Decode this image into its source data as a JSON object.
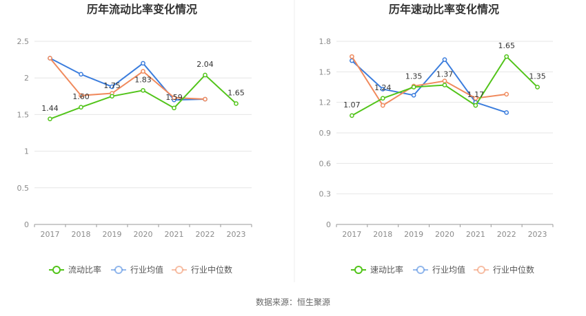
{
  "source": "数据来源：恒生聚源",
  "colors": {
    "company": "#52c41a",
    "avg": "#3b7ddd",
    "median": "#f08a5d"
  },
  "chart_data": [
    {
      "type": "line",
      "title": "历年流动比率变化情况",
      "categories": [
        "2017",
        "2018",
        "2019",
        "2020",
        "2021",
        "2022",
        "2023"
      ],
      "ylim": [
        0,
        2.5
      ],
      "yticks": [
        "0",
        "0.5",
        "1",
        "1.5",
        "2",
        "2.5"
      ],
      "ytick_values": [
        0,
        0.5,
        1,
        1.5,
        2,
        2.5
      ],
      "grid": true,
      "legend_position": "bottom",
      "series": [
        {
          "name": "流动比率",
          "values": [
            1.44,
            1.6,
            1.75,
            1.83,
            1.59,
            2.04,
            1.65
          ],
          "labels": [
            "1.44",
            "1.60",
            "1.75",
            "1.83",
            "1.59",
            "2.04",
            "1.65"
          ]
        },
        {
          "name": "行业均值",
          "values": [
            2.27,
            2.05,
            1.88,
            2.2,
            1.7,
            1.71,
            null
          ]
        },
        {
          "name": "行业中位数",
          "values": [
            2.27,
            1.76,
            1.79,
            2.09,
            1.73,
            1.71,
            null
          ]
        }
      ]
    },
    {
      "type": "line",
      "title": "历年速动比率变化情况",
      "categories": [
        "2017",
        "2018",
        "2019",
        "2020",
        "2021",
        "2022",
        "2023"
      ],
      "ylim": [
        0,
        1.8
      ],
      "yticks": [
        "0",
        "0.3",
        "0.6",
        "0.9",
        "1.2",
        "1.5",
        "1.8"
      ],
      "ytick_values": [
        0,
        0.3,
        0.6,
        0.9,
        1.2,
        1.5,
        1.8
      ],
      "grid": true,
      "legend_position": "bottom",
      "series": [
        {
          "name": "速动比率",
          "values": [
            1.07,
            1.24,
            1.35,
            1.37,
            1.17,
            1.65,
            1.35
          ],
          "labels": [
            "1.07",
            "1.24",
            "1.35",
            "1.37",
            "1.17",
            "1.65",
            "1.35"
          ]
        },
        {
          "name": "行业均值",
          "values": [
            1.61,
            1.33,
            1.27,
            1.62,
            1.2,
            1.1,
            null
          ]
        },
        {
          "name": "行业中位数",
          "values": [
            1.65,
            1.17,
            1.36,
            1.41,
            1.24,
            1.28,
            null
          ]
        }
      ]
    }
  ]
}
